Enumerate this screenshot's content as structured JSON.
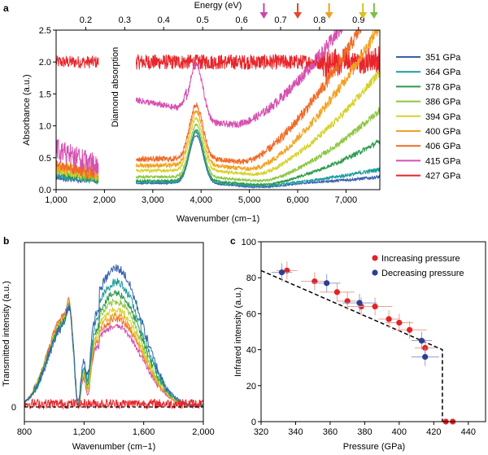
{
  "panels": {
    "a": "a",
    "b": "b",
    "c": "c"
  },
  "chart_data": [
    {
      "panel": "a",
      "type": "line",
      "xlabel": "Wavenumber (cm−1)",
      "ylabel": "Absorbance (a.u.)",
      "xlim": [
        1000,
        7700
      ],
      "ylim": [
        0,
        2.5
      ],
      "x_ticks": [
        "1,000",
        "2,000",
        "3,000",
        "4,000",
        "5,000",
        "6,000",
        "7,000"
      ],
      "x_tick_values": [
        1000,
        2000,
        3000,
        4000,
        5000,
        6000,
        7000
      ],
      "y_ticks": [
        "0.0",
        "0.5",
        "1.0",
        "1.5",
        "2.0",
        "2.5"
      ],
      "y_tick_values": [
        0,
        0.5,
        1.0,
        1.5,
        2.0,
        2.5
      ],
      "top_axis": {
        "label": "Energy (eV)",
        "ticks": [
          "0.2",
          "0.3",
          "0.4",
          "0.5",
          "0.6",
          "0.7",
          "0.8",
          "0.9"
        ],
        "values": [
          0.2,
          0.3,
          0.4,
          0.5,
          0.6,
          0.7,
          0.8,
          0.9
        ]
      },
      "annotation": "Diamond absorption",
      "gap": [
        1880,
        2650
      ],
      "arrows": [
        {
          "x": 5300,
          "color": "#cc44aa"
        },
        {
          "x": 6000,
          "color": "#e8452a"
        },
        {
          "x": 6650,
          "color": "#f0a020"
        },
        {
          "x": 7350,
          "color": "#d8c020"
        },
        {
          "x": 7580,
          "color": "#7ac043"
        }
      ],
      "legend_position": "right",
      "series": [
        {
          "name": "351 GPa",
          "color": "#3a5fae"
        },
        {
          "name": "364 GPa",
          "color": "#1e9c9e"
        },
        {
          "name": "378 GPa",
          "color": "#2a9a4a"
        },
        {
          "name": "386 GPa",
          "color": "#8cc63f"
        },
        {
          "name": "394 GPa",
          "color": "#d6d22a"
        },
        {
          "name": "400 GPa",
          "color": "#f2a21f"
        },
        {
          "name": "406 GPa",
          "color": "#ef6a25"
        },
        {
          "name": "415 GPa",
          "color": "#d54fb0"
        },
        {
          "name": "427 GPa",
          "color": "#e8252a"
        }
      ]
    },
    {
      "panel": "b",
      "type": "line",
      "xlabel": "Wavenumber (cm−1)",
      "ylabel": "Transmitted intensity (a.u.)",
      "xlim": [
        800,
        2000
      ],
      "x_ticks": [
        "800",
        "1,200",
        "1,600",
        "2,000"
      ],
      "x_tick_values": [
        800,
        1200,
        1600,
        2000
      ],
      "y_ticks": [
        "0"
      ],
      "y_tick_values": [
        0
      ]
    },
    {
      "panel": "c",
      "type": "scatter",
      "xlabel": "Pressure (GPa)",
      "ylabel": "Infrared intensity (a.u.)",
      "xlim": [
        320,
        450
      ],
      "ylim": [
        0,
        100
      ],
      "x_ticks": [
        "320",
        "340",
        "360",
        "380",
        "400",
        "420",
        "440"
      ],
      "x_tick_values": [
        320,
        340,
        360,
        380,
        400,
        420,
        440
      ],
      "y_ticks": [
        "0",
        "20",
        "40",
        "60",
        "80",
        "100"
      ],
      "y_tick_values": [
        0,
        20,
        40,
        60,
        80,
        100
      ],
      "legend_position": "top-right",
      "series": [
        {
          "name": "Increasing pressure",
          "color": "#e32227",
          "x": [
            335,
            351,
            364,
            370,
            378,
            386,
            394,
            400,
            406,
            415,
            427,
            431
          ],
          "y": [
            84,
            78,
            72,
            67,
            64,
            64,
            57,
            55,
            51,
            41,
            0,
            0
          ]
        },
        {
          "name": "Decreasing pressure",
          "color": "#2b3f93",
          "x": [
            332,
            358,
            377,
            413,
            415
          ],
          "y": [
            83,
            77,
            66,
            45,
            36
          ]
        }
      ],
      "fit_line": [
        [
          320,
          84
        ],
        [
          425,
          40
        ],
        [
          425,
          0
        ]
      ]
    }
  ]
}
